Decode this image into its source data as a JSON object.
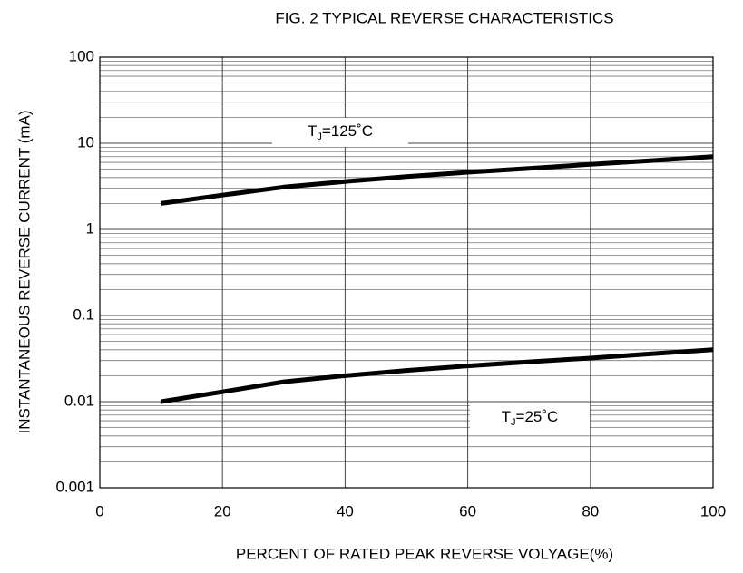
{
  "chart_data": {
    "type": "line",
    "title": "FIG. 2 TYPICAL REVERSE CHARACTERISTICS",
    "x_label": "PERCENT OF RATED PEAK REVERSE VOLYAGE(%)",
    "y_label": "INSTANTANEOUS REVERSE CURRENT (mA)",
    "x": [
      10,
      20,
      30,
      40,
      50,
      60,
      70,
      80,
      90,
      100
    ],
    "series": [
      {
        "name": "TJ=125˚C",
        "color": "#000000",
        "values": [
          2.0,
          2.5,
          3.1,
          3.6,
          4.1,
          4.6,
          5.1,
          5.7,
          6.3,
          7.0
        ]
      },
      {
        "name": "TJ=25˚C",
        "color": "#000000",
        "values": [
          0.01,
          0.013,
          0.017,
          0.02,
          0.023,
          0.026,
          0.029,
          0.032,
          0.036,
          0.04
        ]
      }
    ],
    "name_subscript": [
      1,
      2
    ],
    "xlim": [
      0,
      100
    ],
    "xticks": [
      0,
      20,
      40,
      60,
      80,
      100
    ],
    "ylim": [
      0.001,
      100
    ],
    "yticks": [
      100,
      10,
      1,
      0.1,
      0.01,
      0.001
    ],
    "y_log": true,
    "grid": true
  }
}
